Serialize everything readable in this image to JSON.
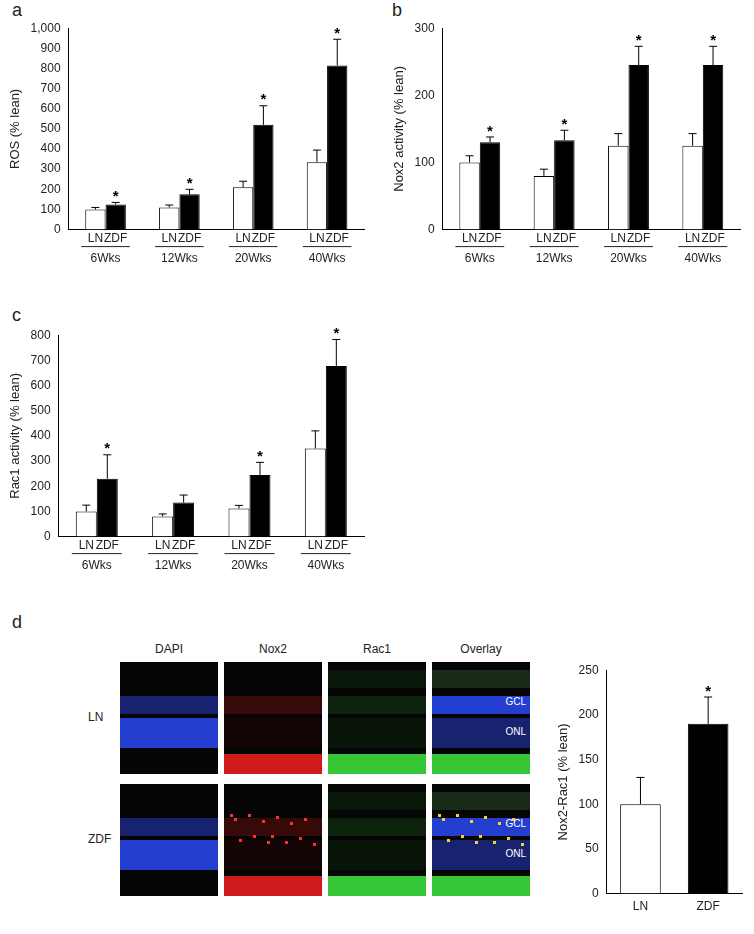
{
  "chart_data": [
    {
      "type": "bar",
      "panel": "a",
      "y_label": "ROS (% lean)",
      "categories": [
        "6Wks",
        "12Wks",
        "20Wks",
        "40Wks"
      ],
      "series": [
        {
          "name": "LN",
          "color": "#ffffff",
          "values": [
            100,
            110,
            210,
            335
          ],
          "errors": [
            10,
            12,
            30,
            60
          ]
        },
        {
          "name": "ZDF",
          "color": "#000000",
          "values": [
            125,
            175,
            520,
            815
          ],
          "errors": [
            10,
            25,
            95,
            130
          ],
          "annotations": [
            "*",
            "*",
            "*",
            "*"
          ]
        }
      ],
      "ylim": [
        0,
        1000
      ],
      "yticks": [
        0,
        100,
        200,
        300,
        400,
        500,
        600,
        700,
        800,
        900,
        1000
      ],
      "grid": false
    },
    {
      "type": "bar",
      "panel": "b",
      "y_label": "Nox2 activity (% lean)",
      "categories": [
        "6Wks",
        "12Wks",
        "20Wks",
        "40Wks"
      ],
      "series": [
        {
          "name": "LN",
          "color": "#ffffff",
          "values": [
            100,
            80,
            125,
            125
          ],
          "errors": [
            10,
            10,
            18,
            18
          ]
        },
        {
          "name": "ZDF",
          "color": "#000000",
          "values": [
            130,
            133,
            245,
            245
          ],
          "errors": [
            8,
            15,
            28,
            28
          ],
          "annotations": [
            "*",
            "*",
            "*",
            "*"
          ]
        }
      ],
      "ylim": [
        0,
        300
      ],
      "yticks": [
        0,
        100,
        200,
        300
      ],
      "grid": false
    },
    {
      "type": "bar",
      "panel": "c",
      "y_label": "Rac1 activity (% lean)",
      "categories": [
        "6Wks",
        "12Wks",
        "20Wks",
        "40Wks"
      ],
      "series": [
        {
          "name": "LN",
          "color": "#ffffff",
          "values": [
            100,
            80,
            112,
            350
          ],
          "errors": [
            25,
            10,
            12,
            70
          ]
        },
        {
          "name": "ZDF",
          "color": "#000000",
          "values": [
            230,
            135,
            245,
            678
          ],
          "errors": [
            95,
            30,
            50,
            105
          ],
          "annotations": [
            "*",
            null,
            "*",
            "*"
          ]
        }
      ],
      "ylim": [
        0,
        800
      ],
      "yticks": [
        0,
        100,
        200,
        300,
        400,
        500,
        600,
        700,
        800
      ],
      "grid": false
    },
    {
      "type": "bar",
      "panel": "d",
      "y_label": "Nox2-Rac1 (% lean)",
      "categories": [
        "LN",
        "ZDF"
      ],
      "values": [
        100,
        190
      ],
      "errors": [
        30,
        30
      ],
      "colors": [
        "#ffffff",
        "#000000"
      ],
      "annotations": [
        null,
        "*"
      ],
      "ylim": [
        0,
        250
      ],
      "yticks": [
        0,
        50,
        100,
        150,
        200,
        250
      ],
      "grid": false
    }
  ],
  "images": {
    "columns": [
      "DAPI",
      "Nox2",
      "Rac1",
      "Overlay"
    ],
    "rows": [
      "LN",
      "ZDF"
    ],
    "layer_labels": [
      "GCL",
      "ONL"
    ]
  }
}
